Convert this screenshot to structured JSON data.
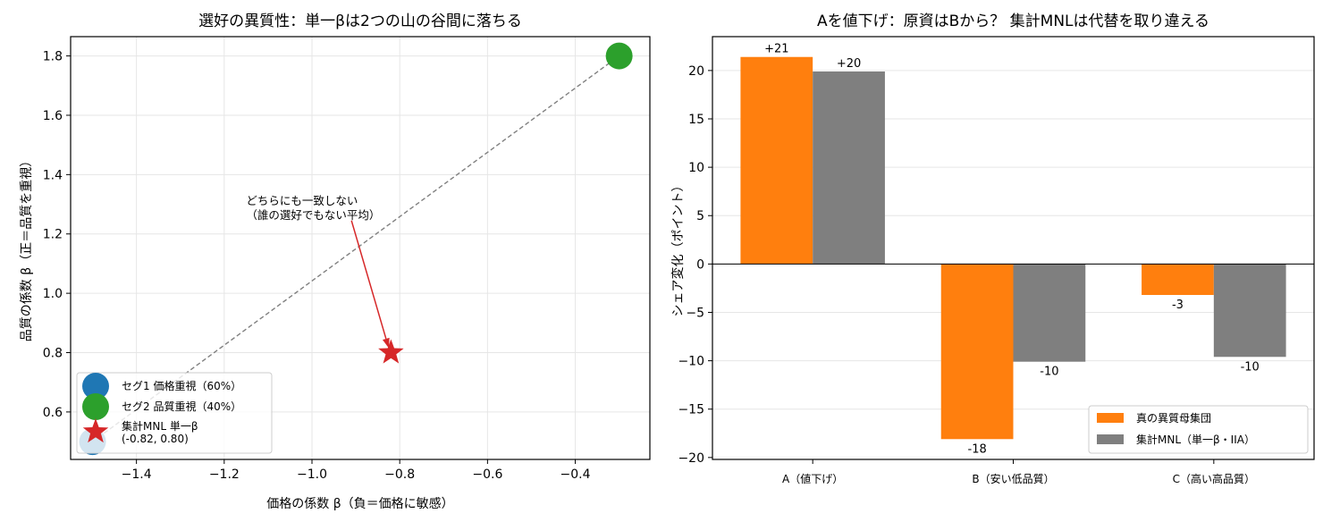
{
  "chart_data": [
    {
      "type": "scatter",
      "title": "選好の異質性：単一βは2つの山の谷間に落ちる",
      "xlabel": "価格の係数 β（負＝価格に敏感）",
      "ylabel": "品質の係数 β（正＝品質を重視）",
      "xlim": [
        -1.55,
        -0.23
      ],
      "ylim": [
        0.44,
        1.865
      ],
      "x_ticks": [
        -1.4,
        -1.2,
        -1.0,
        -0.8,
        -0.6,
        -0.4
      ],
      "x_tick_labels": [
        "−1.4",
        "−1.2",
        "−1.0",
        "−0.8",
        "−0.6",
        "−0.4"
      ],
      "y_ticks": [
        0.6,
        0.8,
        1.0,
        1.2,
        1.4,
        1.6,
        1.8
      ],
      "y_tick_labels": [
        "0.6",
        "0.8",
        "1.0",
        "1.2",
        "1.4",
        "1.6",
        "1.8"
      ],
      "grid": true,
      "series": [
        {
          "name": "セグ1 価格重視（60%）",
          "marker": "circle",
          "color": "#1f77b4",
          "points": [
            {
              "x": -1.5,
              "y": 0.5
            }
          ]
        },
        {
          "name": "セグ2 品質重視（40%）",
          "marker": "circle",
          "color": "#2ca02c",
          "points": [
            {
              "x": -0.3,
              "y": 1.8
            }
          ]
        },
        {
          "name": "集計MNL 単一β\n(-0.82, 0.80)",
          "marker": "star",
          "color": "#d62728",
          "points": [
            {
              "x": -0.82,
              "y": 0.8
            }
          ]
        }
      ],
      "connector": {
        "from": [
          -1.5,
          0.5
        ],
        "to": [
          -0.3,
          1.8
        ],
        "style": "dashed",
        "color": "#808080"
      },
      "annotation": {
        "lines": [
          "どちらにも一致しない",
          "（誰の選好でもない平均）"
        ],
        "text_at": [
          -1.15,
          1.28
        ],
        "arrow_from": [
          -0.91,
          1.245
        ],
        "arrow_to": [
          -0.825,
          0.815
        ],
        "color": "#d62728"
      },
      "legend_position": "lower-left"
    },
    {
      "type": "bar",
      "title": "Aを値下げ：原資はBから？ 集計MNLは代替を取り違える",
      "ylabel": "シェア変化（ポイント）",
      "categories": [
        "A（値下げ）",
        "B（安い低品質）",
        "C（高い高品質）"
      ],
      "ylim": [
        -20.2,
        23.5
      ],
      "y_ticks": [
        -20,
        -15,
        -10,
        -5,
        0,
        5,
        10,
        15,
        20
      ],
      "y_tick_labels": [
        "−20",
        "−15",
        "−10",
        "−5",
        "0",
        "5",
        "10",
        "15",
        "20"
      ],
      "grid": true,
      "zero_line": true,
      "series": [
        {
          "name": "真の異質母集団",
          "color": "#ff7f0e",
          "values": [
            21.4,
            -18.1,
            -3.2
          ],
          "labels": [
            "+21",
            "-18",
            "-3"
          ]
        },
        {
          "name": "集計MNL（単一β・IIA）",
          "color": "#7f7f7f",
          "values": [
            19.9,
            -10.1,
            -9.6
          ],
          "labels": [
            "+20",
            "-10",
            "-10"
          ]
        }
      ],
      "legend_position": "lower-right"
    }
  ]
}
